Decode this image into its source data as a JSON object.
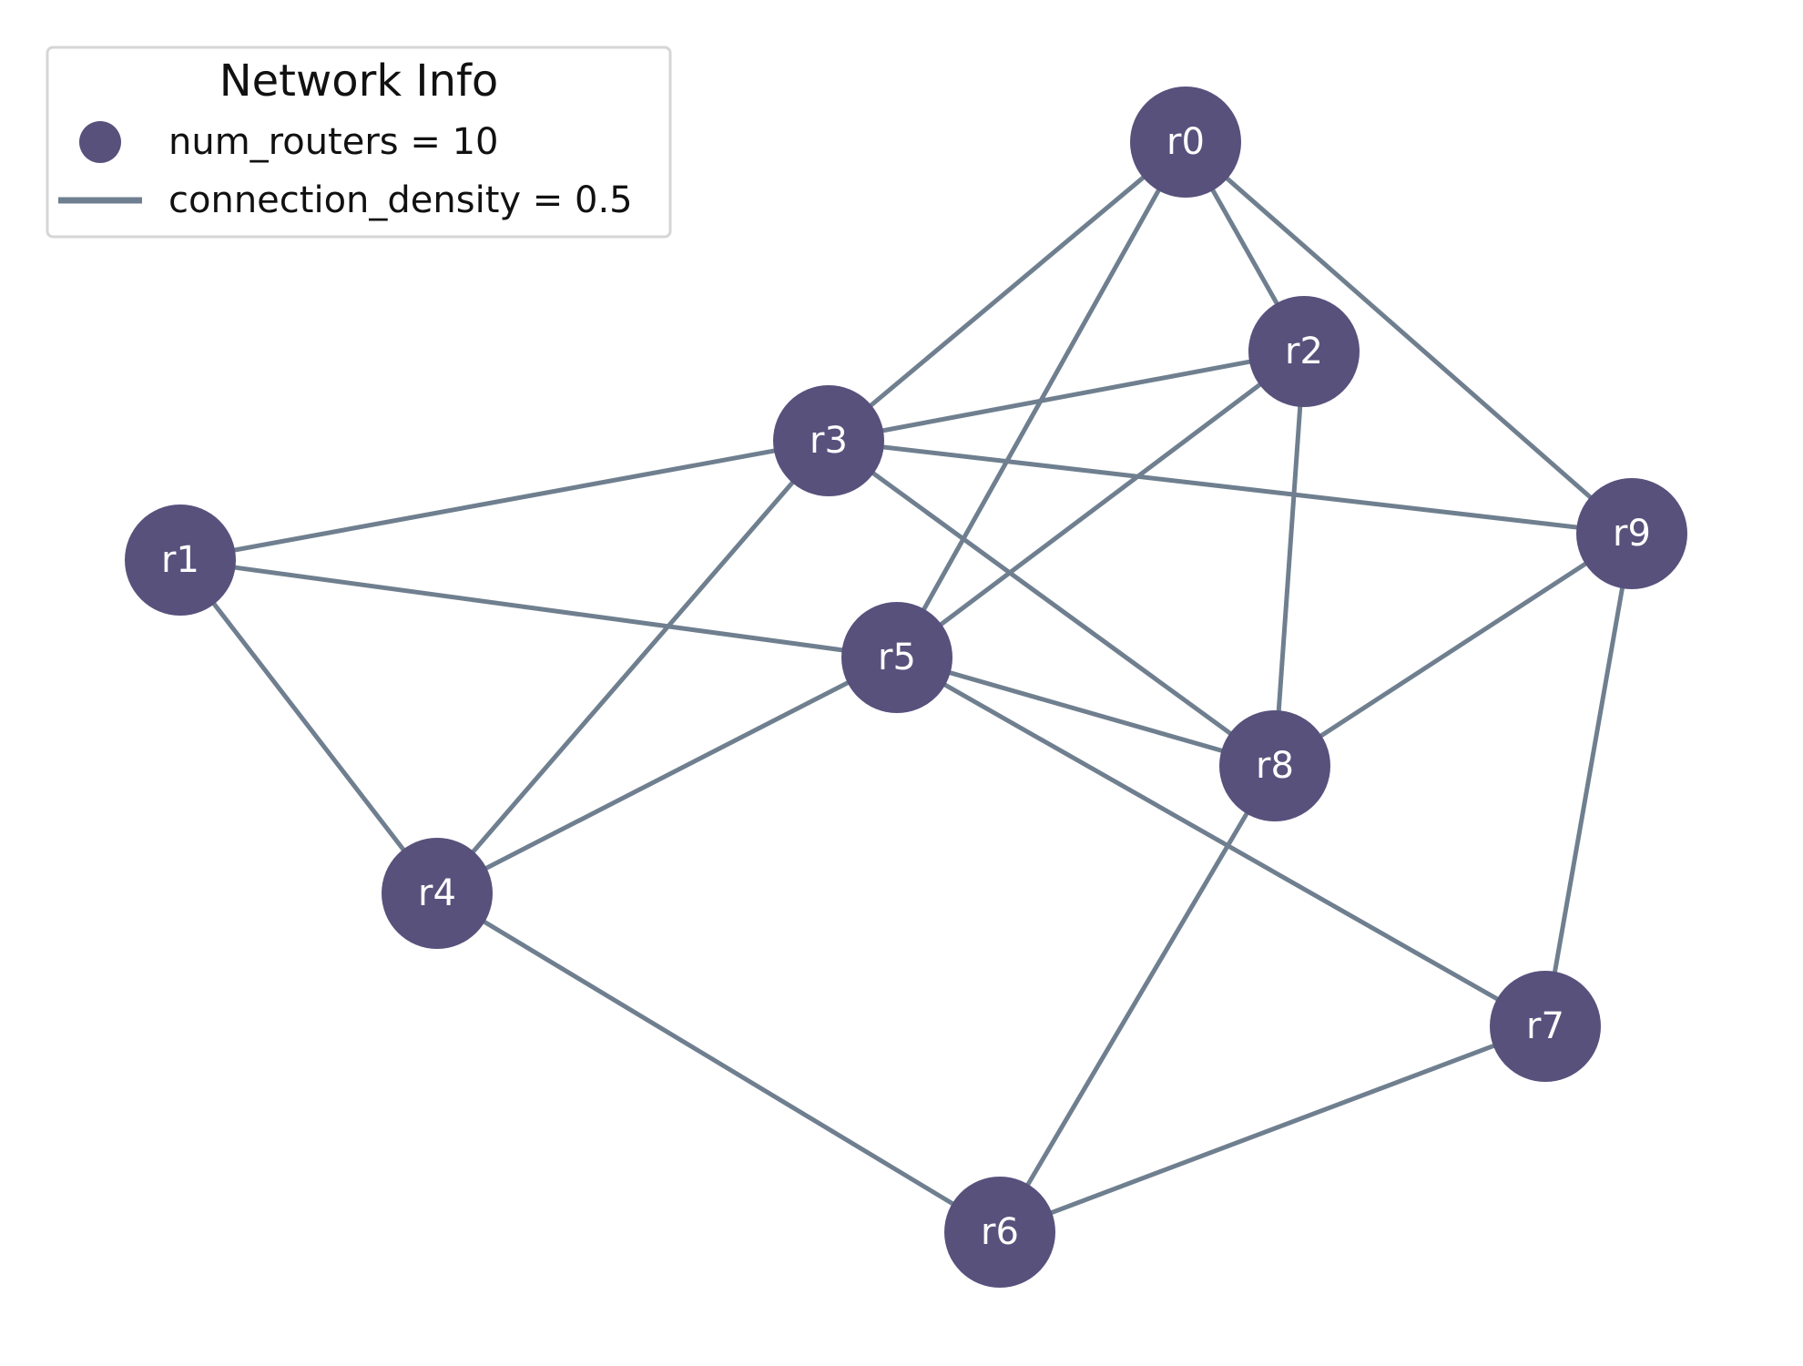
{
  "colors": {
    "node": "#58517c",
    "edge": "#6f7f8f",
    "label": "#ffffff"
  },
  "legend": {
    "title": "Network Info",
    "node_entry": "num_routers = 10",
    "edge_entry": "connection_density = 0.5"
  },
  "nodes": [
    {
      "id": "r0",
      "label": "r0"
    },
    {
      "id": "r1",
      "label": "r1"
    },
    {
      "id": "r2",
      "label": "r2"
    },
    {
      "id": "r3",
      "label": "r3"
    },
    {
      "id": "r4",
      "label": "r4"
    },
    {
      "id": "r5",
      "label": "r5"
    },
    {
      "id": "r6",
      "label": "r6"
    },
    {
      "id": "r7",
      "label": "r7"
    },
    {
      "id": "r8",
      "label": "r8"
    },
    {
      "id": "r9",
      "label": "r9"
    }
  ],
  "edges": [
    [
      "r0",
      "r3"
    ],
    [
      "r0",
      "r5"
    ],
    [
      "r0",
      "r2"
    ],
    [
      "r0",
      "r9"
    ],
    [
      "r2",
      "r3"
    ],
    [
      "r2",
      "r5"
    ],
    [
      "r2",
      "r8"
    ],
    [
      "r3",
      "r1"
    ],
    [
      "r3",
      "r9"
    ],
    [
      "r3",
      "r8"
    ],
    [
      "r3",
      "r4"
    ],
    [
      "r1",
      "r5"
    ],
    [
      "r1",
      "r4"
    ],
    [
      "r5",
      "r8"
    ],
    [
      "r5",
      "r4"
    ],
    [
      "r5",
      "r7"
    ],
    [
      "r9",
      "r8"
    ],
    [
      "r9",
      "r7"
    ],
    [
      "r8",
      "r6"
    ],
    [
      "r4",
      "r6"
    ],
    [
      "r6",
      "r7"
    ]
  ]
}
